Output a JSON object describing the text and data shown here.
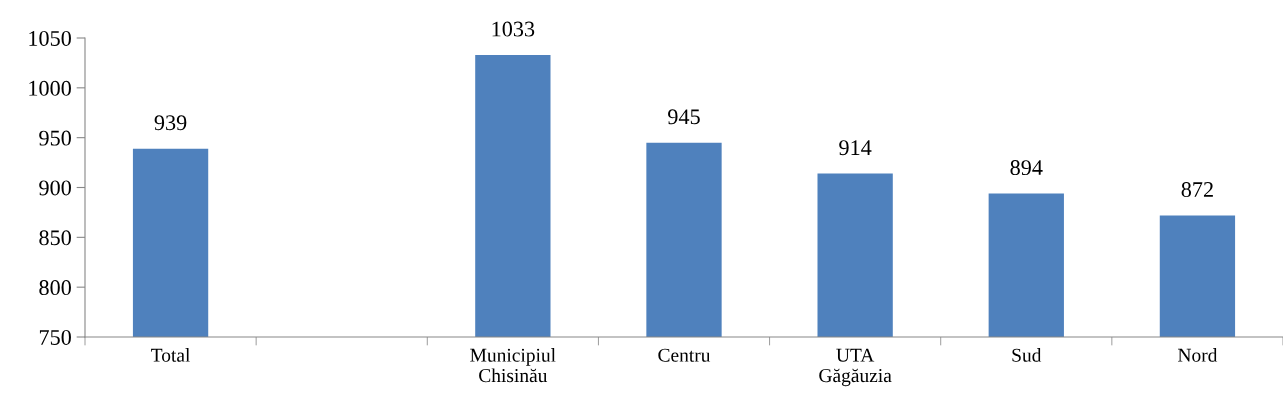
{
  "chart_data": {
    "type": "bar",
    "categories": [
      "Total",
      null,
      "Municipiul\nChisinău",
      "Centru",
      "UTA\nGăgăuzia",
      "Sud",
      "Nord"
    ],
    "values": [
      939,
      null,
      1033,
      945,
      914,
      894,
      872
    ],
    "color": "#4f81bd",
    "ylim": [
      750,
      1050
    ],
    "yticks": [
      750,
      800,
      850,
      900,
      950,
      1000,
      1050
    ],
    "grid": false,
    "data_labels": true
  }
}
